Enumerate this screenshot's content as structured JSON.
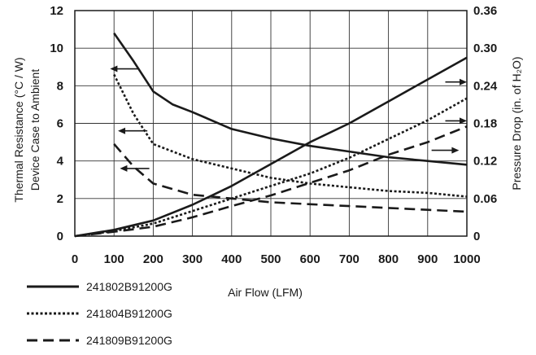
{
  "chart_data": {
    "type": "line",
    "xlabel": "Air Flow (LFM)",
    "ylabel_left": [
      "Thermal Resistance (°C / W)",
      "Device Case to Ambient"
    ],
    "ylabel_right": "Pressure Drop (in. of H₂O)",
    "x_ticks": [
      "0",
      "100",
      "200",
      "300",
      "400",
      "500",
      "600",
      "700",
      "800",
      "900",
      "1000"
    ],
    "y_left_ticks": [
      "0",
      "2",
      "4",
      "6",
      "8",
      "10",
      "12"
    ],
    "y_right_ticks": [
      "0",
      "0.06",
      "0.12",
      "0.18",
      "0.24",
      "0.30",
      "0.36"
    ],
    "xlim": [
      0,
      1000
    ],
    "ylim_left": [
      0,
      12
    ],
    "ylim_right": [
      0,
      0.36
    ],
    "grid": true,
    "legend_position": "bottom-left",
    "legend": [
      "241802B91200G",
      "241804B91200G",
      "241809B91200G"
    ],
    "series": [
      {
        "name": "241802B91200G",
        "style": "solid",
        "thermal_resistance": {
          "x": [
            100,
            150,
            200,
            250,
            300,
            400,
            500,
            600,
            700,
            800,
            900,
            1000
          ],
          "y": [
            10.8,
            9.3,
            7.7,
            7.0,
            6.6,
            5.7,
            5.2,
            4.8,
            4.5,
            4.2,
            4.0,
            3.8
          ]
        },
        "pressure_drop": {
          "x": [
            0,
            100,
            200,
            300,
            400,
            500,
            600,
            700,
            800,
            900,
            1000
          ],
          "y": [
            0,
            0.01,
            0.025,
            0.05,
            0.08,
            0.115,
            0.15,
            0.18,
            0.215,
            0.25,
            0.285
          ]
        }
      },
      {
        "name": "241804B91200G",
        "style": "dotted",
        "thermal_resistance": {
          "x": [
            100,
            150,
            200,
            300,
            400,
            500,
            600,
            700,
            800,
            900,
            1000
          ],
          "y": [
            8.6,
            6.5,
            4.9,
            4.1,
            3.6,
            3.1,
            2.8,
            2.6,
            2.4,
            2.3,
            2.1
          ]
        },
        "pressure_drop": {
          "x": [
            0,
            100,
            200,
            300,
            400,
            500,
            600,
            700,
            800,
            900,
            1000
          ],
          "y": [
            0,
            0.008,
            0.02,
            0.04,
            0.06,
            0.08,
            0.1,
            0.125,
            0.155,
            0.185,
            0.22
          ]
        }
      },
      {
        "name": "241809B91200G",
        "style": "dashed",
        "thermal_resistance": {
          "x": [
            100,
            150,
            200,
            300,
            400,
            500,
            600,
            700,
            800,
            900,
            1000
          ],
          "y": [
            4.9,
            3.7,
            2.8,
            2.2,
            2.0,
            1.8,
            1.7,
            1.6,
            1.5,
            1.4,
            1.3
          ]
        },
        "pressure_drop": {
          "x": [
            0,
            100,
            200,
            300,
            400,
            500,
            600,
            700,
            800,
            900,
            1000
          ],
          "y": [
            0,
            0.007,
            0.015,
            0.03,
            0.048,
            0.065,
            0.085,
            0.105,
            0.13,
            0.15,
            0.175
          ]
        }
      }
    ]
  }
}
